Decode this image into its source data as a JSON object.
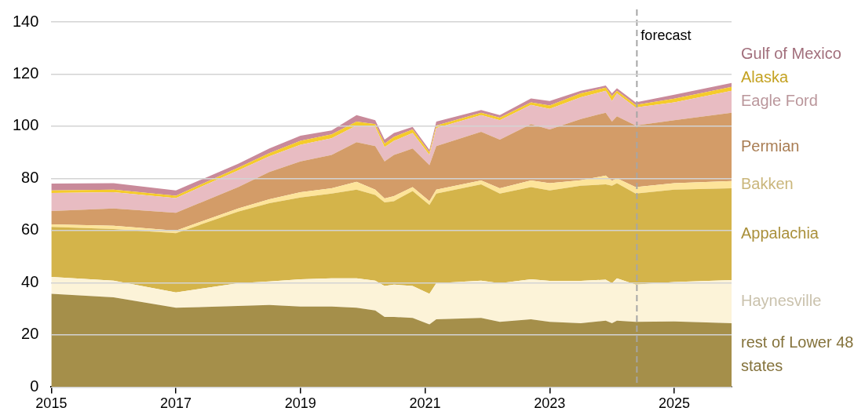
{
  "chart_data": {
    "type": "area",
    "stacked": true,
    "grid": "y",
    "x": [
      2015,
      2016,
      2017,
      2018,
      2018.5,
      2019,
      2019.5,
      2019.9,
      2020.2,
      2020.35,
      2020.5,
      2020.8,
      2021.07,
      2021.18,
      2021.9,
      2022.2,
      2022.7,
      2023.0,
      2023.5,
      2023.9,
      2024.0,
      2024.08,
      2024.38,
      2025.0,
      2025.92
    ],
    "xlim": [
      2015,
      2025.92
    ],
    "xticks": [
      2015,
      2017,
      2019,
      2021,
      2023,
      2025
    ],
    "ylim": [
      0,
      140
    ],
    "yticks": [
      0,
      20,
      40,
      60,
      80,
      100,
      120,
      140
    ],
    "series": [
      {
        "name": "rest of Lower 48 states",
        "color": "#a58f4a",
        "values": [
          35.8,
          34.4,
          30.4,
          31.1,
          31.5,
          30.9,
          30.9,
          30.4,
          29.4,
          26.9,
          26.9,
          26.5,
          24.0,
          26.0,
          26.5,
          25.0,
          26.0,
          25.0,
          24.5,
          25.5,
          24.5,
          25.5,
          25.0,
          25.2,
          24.5
        ]
      },
      {
        "name": "Haynesville",
        "color": "#fcf3d8",
        "values": [
          6.4,
          6.4,
          5.9,
          8.7,
          9.0,
          10.4,
          10.8,
          11.3,
          11.4,
          11.9,
          12.4,
          12.3,
          11.8,
          13.8,
          14.3,
          14.8,
          15.3,
          15.7,
          16.2,
          15.7,
          15.3,
          16.2,
          14.3,
          15.1,
          16.5
        ]
      },
      {
        "name": "Appalachia",
        "color": "#d4b44a",
        "values": [
          19.2,
          19.8,
          22.7,
          27.5,
          30.0,
          31.4,
          32.5,
          34.0,
          32.9,
          32.0,
          32.0,
          36.4,
          34.0,
          34.4,
          36.9,
          34.4,
          35.4,
          34.7,
          36.5,
          36.5,
          37.4,
          36.5,
          34.9,
          35.4,
          35.2
        ]
      },
      {
        "name": "Bakken",
        "color": "#fde49a",
        "values": [
          1.0,
          1.3,
          1.0,
          1.2,
          1.5,
          2.0,
          2.0,
          3.0,
          2.0,
          1.5,
          1.9,
          1.5,
          1.5,
          1.5,
          1.5,
          2.0,
          2.5,
          2.8,
          2.1,
          3.4,
          1.9,
          1.9,
          2.5,
          2.5,
          2.8
        ]
      },
      {
        "name": "Permian",
        "color": "#d39c68",
        "values": [
          5.1,
          6.6,
          6.8,
          8.2,
          10.5,
          11.8,
          12.8,
          15.2,
          16.7,
          14.2,
          15.8,
          14.8,
          13.8,
          16.7,
          18.7,
          18.7,
          21.6,
          20.6,
          23.5,
          24.1,
          22.7,
          23.7,
          23.6,
          24.1,
          26.2
        ]
      },
      {
        "name": "Eagle Ford",
        "color": "#e8bcc2",
        "values": [
          6.9,
          6.2,
          5.7,
          6.4,
          6.0,
          6.4,
          6.4,
          6.4,
          7.4,
          5.5,
          5.4,
          5.9,
          3.9,
          6.9,
          6.4,
          7.4,
          7.4,
          7.9,
          8.3,
          8.4,
          7.9,
          8.8,
          6.9,
          6.9,
          8.4
        ]
      },
      {
        "name": "Alaska",
        "color": "#f5cb2a",
        "values": [
          1.0,
          1.0,
          0.9,
          1.0,
          1.2,
          1.5,
          1.5,
          1.5,
          1.0,
          1.4,
          1.5,
          1.4,
          1.0,
          1.0,
          0.9,
          1.0,
          1.0,
          1.3,
          1.5,
          1.2,
          1.9,
          1.0,
          1.0,
          1.4,
          1.5
        ]
      },
      {
        "name": "Gulf of Mexico",
        "color": "#c98a9a",
        "values": [
          2.6,
          2.5,
          2.0,
          1.5,
          1.8,
          2.0,
          1.5,
          2.5,
          1.5,
          1.5,
          1.5,
          1.0,
          1.0,
          1.5,
          1.0,
          1.0,
          1.5,
          1.7,
          1.0,
          0.8,
          1.0,
          1.0,
          1.0,
          1.5,
          1.5
        ]
      }
    ],
    "ref_lines": [
      {
        "axis": "x",
        "value": 2024.4,
        "label": "forecast",
        "color": "#a6a6a6",
        "line_style": "dashed"
      }
    ]
  }
}
